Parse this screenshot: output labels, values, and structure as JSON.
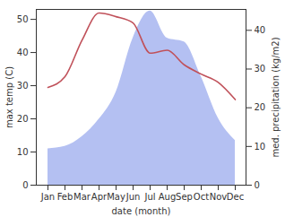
{
  "chart_data": {
    "type": "line",
    "xlabel": "date (month)",
    "ylabel": "max temp (C)",
    "y2label": "med. precipitation (kg/m2)",
    "categories": [
      "Jan",
      "Feb",
      "Mar",
      "Apr",
      "May",
      "Jun",
      "Jul",
      "Aug",
      "Sep",
      "Oct",
      "Nov",
      "Dec"
    ],
    "series": [
      {
        "name": "med. precipitation (kg/m2)",
        "type": "area",
        "axis": "y2",
        "color": "#b4c0f2",
        "values": [
          9.4,
          10,
          12.5,
          17,
          24,
          38,
          45,
          38,
          37,
          28,
          17.3,
          11.5
        ]
      },
      {
        "name": "max temp (C)",
        "type": "line",
        "color": "#c0515a",
        "values": [
          29.5,
          32.7,
          43.7,
          51.9,
          50.8,
          48.9,
          39.8,
          40.7,
          36.3,
          33.5,
          31,
          25.8
        ]
      }
    ],
    "ylim": [
      0,
      53
    ],
    "yticks": [
      0,
      10,
      20,
      30,
      40,
      50
    ],
    "y2lim": [
      0,
      45.4
    ],
    "y2ticks": [
      0,
      10,
      20,
      30,
      40
    ]
  }
}
